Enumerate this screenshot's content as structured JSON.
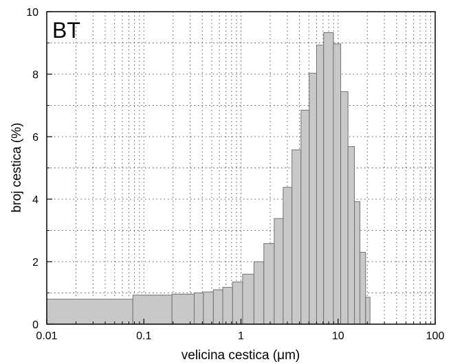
{
  "chart_data": {
    "type": "bar",
    "panel_label": "BT",
    "xlabel": "velicina cestica (μm)",
    "ylabel": "broj cestica (%)",
    "x_scale": "log",
    "xlim": [
      0.01,
      100
    ],
    "ylim": [
      0,
      10
    ],
    "x_ticks": [
      {
        "value": 0.01,
        "label": "0.01"
      },
      {
        "value": 0.1,
        "label": "0.1"
      },
      {
        "value": 1,
        "label": "1"
      },
      {
        "value": 10,
        "label": "10"
      },
      {
        "value": 100,
        "label": "100"
      }
    ],
    "y_ticks": [
      {
        "value": 0,
        "label": "0"
      },
      {
        "value": 2,
        "label": "2"
      },
      {
        "value": 4,
        "label": "4"
      },
      {
        "value": 6,
        "label": "6"
      },
      {
        "value": 8,
        "label": "8"
      },
      {
        "value": 10,
        "label": "10"
      }
    ],
    "grid": "dotted",
    "bar_color": "#c8c8c8",
    "bar_edge_color": "#707070",
    "bins": [
      {
        "x0": 0.01,
        "x1": 0.077,
        "value": 0.8
      },
      {
        "x0": 0.077,
        "x1": 0.195,
        "value": 0.93
      },
      {
        "x0": 0.195,
        "x1": 0.33,
        "value": 0.96
      },
      {
        "x0": 0.33,
        "x1": 0.41,
        "value": 1.0
      },
      {
        "x0": 0.41,
        "x1": 0.52,
        "value": 1.03
      },
      {
        "x0": 0.52,
        "x1": 0.65,
        "value": 1.1
      },
      {
        "x0": 0.65,
        "x1": 0.82,
        "value": 1.18
      },
      {
        "x0": 0.82,
        "x1": 1.04,
        "value": 1.35
      },
      {
        "x0": 1.04,
        "x1": 1.36,
        "value": 1.6
      },
      {
        "x0": 1.36,
        "x1": 1.72,
        "value": 2.0
      },
      {
        "x0": 1.72,
        "x1": 2.2,
        "value": 2.58
      },
      {
        "x0": 2.2,
        "x1": 2.72,
        "value": 3.38
      },
      {
        "x0": 2.72,
        "x1": 3.35,
        "value": 4.38
      },
      {
        "x0": 3.35,
        "x1": 4.15,
        "value": 5.58
      },
      {
        "x0": 4.15,
        "x1": 5.05,
        "value": 6.85
      },
      {
        "x0": 5.05,
        "x1": 6.0,
        "value": 8.03
      },
      {
        "x0": 6.0,
        "x1": 7.1,
        "value": 8.93
      },
      {
        "x0": 7.1,
        "x1": 8.95,
        "value": 9.33
      },
      {
        "x0": 8.95,
        "x1": 10.65,
        "value": 8.97
      },
      {
        "x0": 10.65,
        "x1": 12.65,
        "value": 7.44
      },
      {
        "x0": 12.65,
        "x1": 14.75,
        "value": 5.68
      },
      {
        "x0": 14.75,
        "x1": 16.8,
        "value": 3.92
      },
      {
        "x0": 16.8,
        "x1": 19.2,
        "value": 2.3
      },
      {
        "x0": 19.2,
        "x1": 21.3,
        "value": 0.86
      }
    ]
  }
}
